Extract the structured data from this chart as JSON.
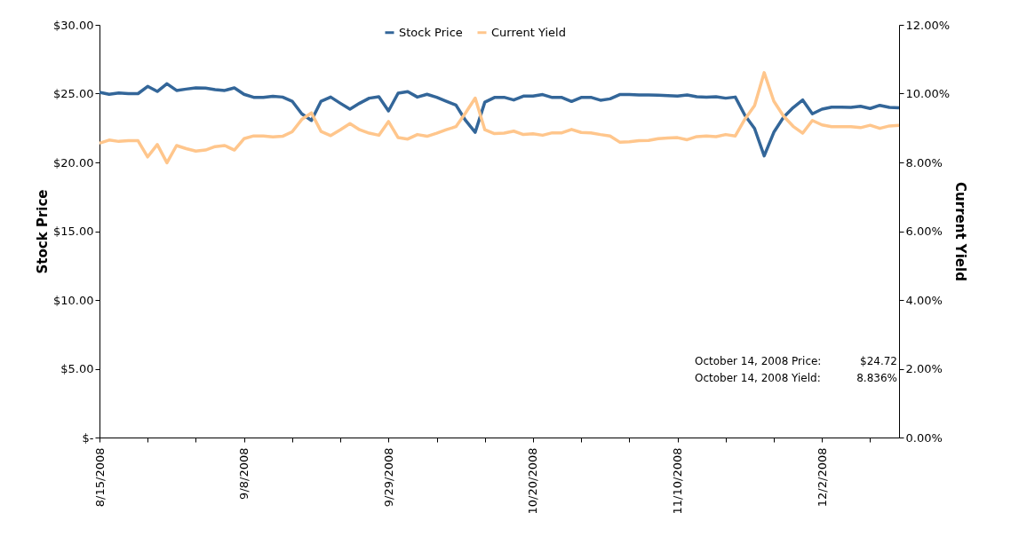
{
  "chart_data": {
    "type": "line",
    "categories": [
      "8/15/2008",
      null,
      null,
      null,
      null,
      null,
      null,
      null,
      null,
      null,
      null,
      null,
      null,
      null,
      null,
      "9/8/2008",
      null,
      null,
      null,
      null,
      null,
      null,
      null,
      null,
      null,
      null,
      null,
      null,
      null,
      null,
      "9/29/2008",
      null,
      null,
      null,
      null,
      null,
      null,
      null,
      null,
      null,
      null,
      null,
      null,
      null,
      null,
      "10/20/2008",
      null,
      null,
      null,
      null,
      null,
      null,
      null,
      null,
      null,
      null,
      null,
      null,
      null,
      null,
      "11/10/2008",
      null,
      null,
      null,
      null,
      null,
      null,
      null,
      null,
      null,
      null,
      null,
      null,
      null,
      null,
      "12/2/2008",
      null,
      null,
      null,
      null,
      null,
      null,
      null,
      null
    ],
    "series": [
      {
        "name": "Stock Price",
        "color": "#336699",
        "axis": "y",
        "values": [
          25.1,
          24.95,
          25.05,
          25.0,
          25.0,
          25.53,
          25.16,
          25.72,
          25.23,
          25.33,
          25.42,
          25.4,
          25.29,
          25.23,
          25.42,
          24.95,
          24.73,
          24.72,
          24.8,
          24.75,
          24.45,
          23.53,
          23.05,
          24.45,
          24.75,
          24.3,
          23.87,
          24.3,
          24.67,
          24.78,
          23.74,
          25.03,
          25.14,
          24.75,
          24.95,
          24.73,
          24.45,
          24.17,
          23.05,
          22.19,
          24.38,
          24.72,
          24.73,
          24.54,
          24.82,
          24.82,
          24.93,
          24.72,
          24.72,
          24.43,
          24.72,
          24.73,
          24.52,
          24.62,
          24.93,
          24.93,
          24.9,
          24.9,
          24.88,
          24.86,
          24.82,
          24.9,
          24.78,
          24.74,
          24.78,
          24.67,
          24.75,
          23.42,
          22.47,
          20.47,
          22.19,
          23.27,
          23.98,
          24.54,
          23.53,
          23.87,
          24.02,
          24.02,
          24.0,
          24.08,
          23.92,
          24.15,
          24.0,
          23.96
        ]
      },
      {
        "name": "Current Yield",
        "color": "#ffc68c",
        "axis": "y2",
        "values": [
          8.56,
          8.65,
          8.61,
          8.63,
          8.63,
          8.16,
          8.52,
          7.99,
          8.49,
          8.4,
          8.33,
          8.36,
          8.46,
          8.49,
          8.36,
          8.69,
          8.77,
          8.77,
          8.74,
          8.76,
          8.89,
          9.25,
          9.44,
          8.9,
          8.78,
          8.95,
          9.13,
          8.95,
          8.85,
          8.79,
          9.19,
          8.72,
          8.68,
          8.81,
          8.76,
          8.85,
          8.95,
          9.04,
          9.44,
          9.87,
          8.95,
          8.836,
          8.85,
          8.91,
          8.81,
          8.83,
          8.79,
          8.86,
          8.86,
          8.96,
          8.87,
          8.86,
          8.81,
          8.77,
          8.59,
          8.6,
          8.63,
          8.64,
          8.69,
          8.71,
          8.72,
          8.66,
          8.75,
          8.77,
          8.75,
          8.81,
          8.77,
          9.26,
          9.65,
          10.61,
          9.78,
          9.35,
          9.05,
          8.85,
          9.22,
          9.09,
          9.04,
          9.04,
          9.04,
          9.01,
          9.08,
          8.99,
          9.06,
          9.08
        ]
      }
    ],
    "ylabel": "Stock Price",
    "y2label": "Current Yield",
    "ylim": [
      0,
      30
    ],
    "yticks": [
      {
        "value": 0,
        "label": "$-"
      },
      {
        "value": 5,
        "label": "$5.00"
      },
      {
        "value": 10,
        "label": "$10.00"
      },
      {
        "value": 15,
        "label": "$15.00"
      },
      {
        "value": 20,
        "label": "$20.00"
      },
      {
        "value": 25,
        "label": "$25.00"
      },
      {
        "value": 30,
        "label": "$30.00"
      }
    ],
    "y2lim": [
      0,
      12
    ],
    "y2ticks": [
      {
        "value": 0,
        "label": "0.00%"
      },
      {
        "value": 2,
        "label": "2.00%"
      },
      {
        "value": 4,
        "label": "4.00%"
      },
      {
        "value": 6,
        "label": "6.00%"
      },
      {
        "value": 8,
        "label": "8.00%"
      },
      {
        "value": 10,
        "label": "10.00%"
      },
      {
        "value": 12,
        "label": "12.00%"
      }
    ],
    "annotations": [
      "October 14, 2008 Price:",
      "$24.72",
      "October 14, 2008 Yield:",
      "8.836%"
    ],
    "legend": "top",
    "grid": false,
    "marker": "none",
    "line_style": "solid"
  }
}
